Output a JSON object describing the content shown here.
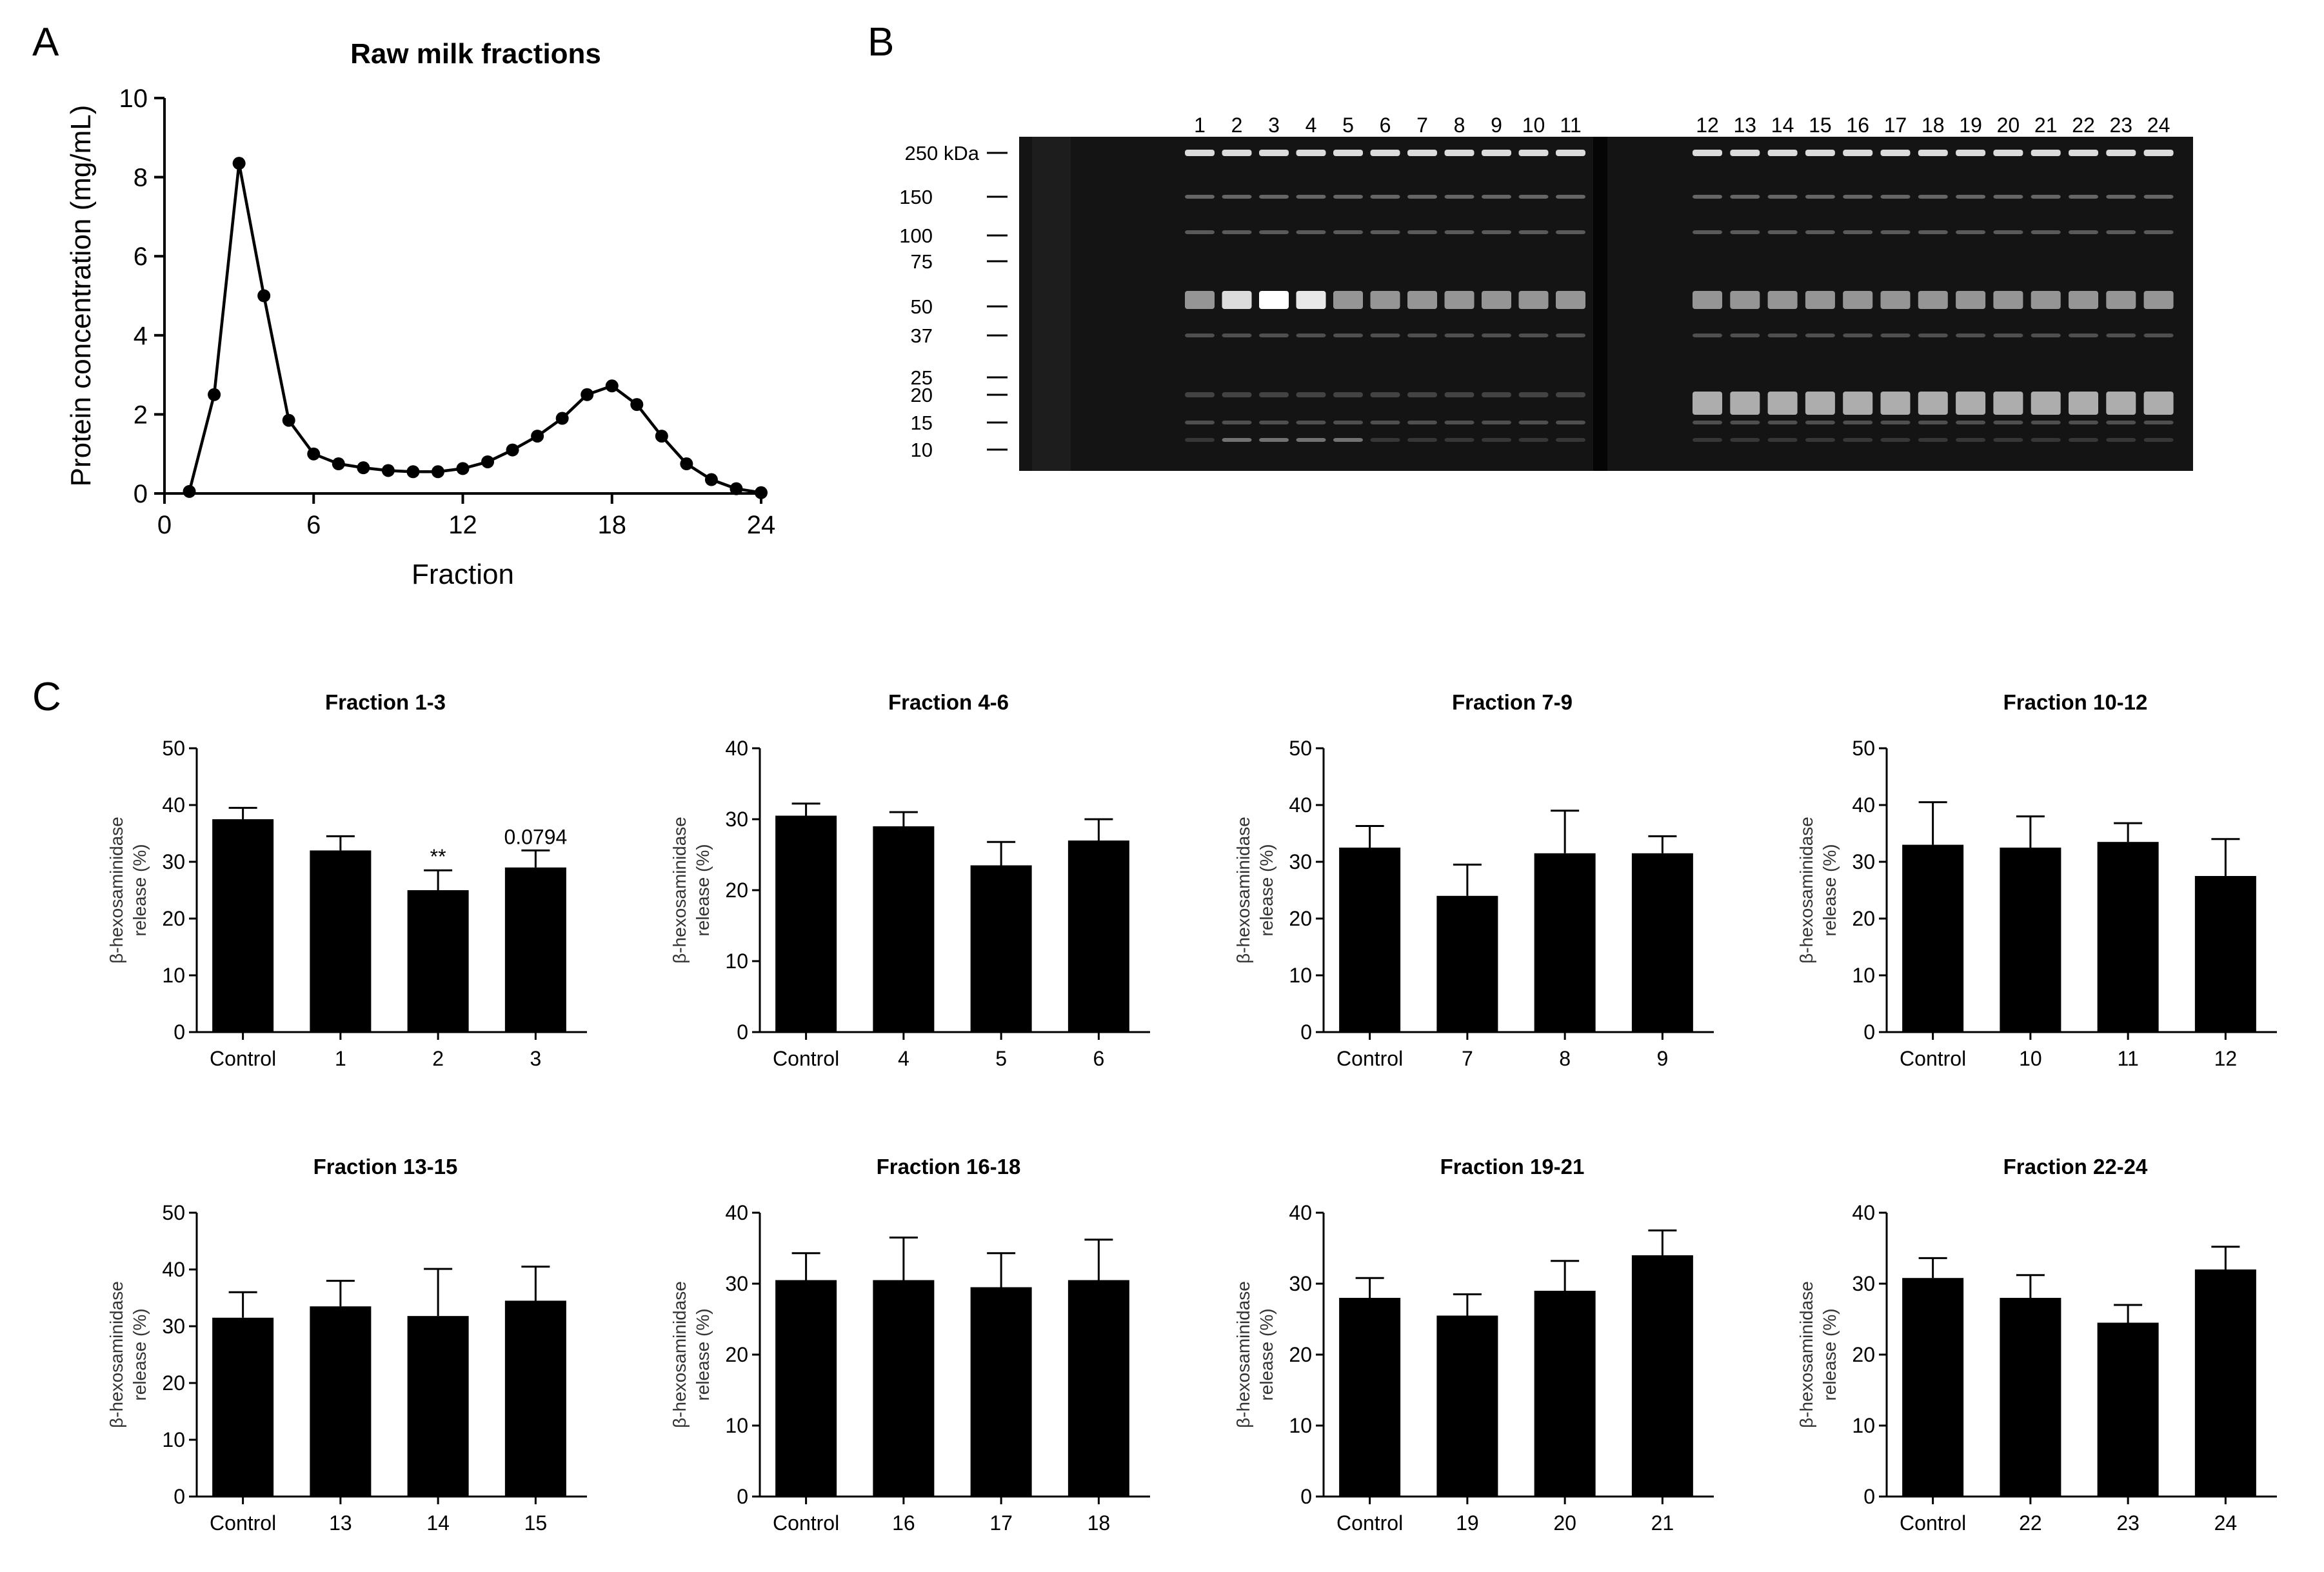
{
  "panels": {
    "a": "A",
    "b": "B",
    "c": "C"
  },
  "chart_data": [
    {
      "id": "A",
      "type": "line",
      "title": "Raw milk fractions",
      "xlabel": "Fraction",
      "ylabel": "Protein concentration (mg/mL)",
      "xlim": [
        0,
        24
      ],
      "ylim": [
        0,
        10
      ],
      "xticks": [
        0,
        6,
        12,
        18,
        24
      ],
      "yticks": [
        0,
        2,
        4,
        6,
        8,
        10
      ],
      "x": [
        1,
        2,
        3,
        4,
        5,
        6,
        7,
        8,
        9,
        10,
        11,
        12,
        13,
        14,
        15,
        16,
        17,
        18,
        19,
        20,
        21,
        22,
        23,
        24
      ],
      "y": [
        0.05,
        2.5,
        8.35,
        5.0,
        1.85,
        1.0,
        0.75,
        0.65,
        0.58,
        0.55,
        0.55,
        0.63,
        0.8,
        1.1,
        1.45,
        1.9,
        2.5,
        2.72,
        2.25,
        1.45,
        0.75,
        0.35,
        0.12,
        0.02
      ]
    },
    {
      "id": "B",
      "type": "gel",
      "lanes_left": [
        "1",
        "2",
        "3",
        "4",
        "5",
        "6",
        "7",
        "8",
        "9",
        "10",
        "11"
      ],
      "lanes_right": [
        "12",
        "13",
        "14",
        "15",
        "16",
        "17",
        "18",
        "19",
        "20",
        "21",
        "22",
        "23",
        "24"
      ],
      "markers": [
        "250 kDa",
        "150",
        "100",
        "75",
        "50",
        "37",
        "25",
        "20",
        "15",
        "10"
      ],
      "marker_values": [
        250,
        150,
        100,
        75,
        50,
        37,
        25,
        20,
        15,
        10
      ]
    },
    {
      "id": "C1",
      "type": "bar",
      "title": "Fraction 1-3",
      "ylabel": "β-hexosaminidase release (%)",
      "ylim": [
        0,
        50
      ],
      "yticks": [
        0,
        10,
        20,
        30,
        40,
        50
      ],
      "categories": [
        "Control",
        "1",
        "2",
        "3"
      ],
      "values": [
        37.5,
        32.0,
        25.0,
        29.0
      ],
      "errors": [
        2.0,
        2.5,
        3.5,
        3.0
      ],
      "annotations": [
        "",
        "",
        "**",
        "0.0794"
      ]
    },
    {
      "id": "C2",
      "type": "bar",
      "title": "Fraction 4-6",
      "ylabel": "β-hexosaminidase release (%)",
      "ylim": [
        0,
        40
      ],
      "yticks": [
        0,
        10,
        20,
        30,
        40
      ],
      "categories": [
        "Control",
        "4",
        "5",
        "6"
      ],
      "values": [
        30.5,
        29.0,
        23.5,
        27.0
      ],
      "errors": [
        1.7,
        2.0,
        3.3,
        3.0
      ],
      "annotations": [
        "",
        "",
        "",
        ""
      ]
    },
    {
      "id": "C3",
      "type": "bar",
      "title": "Fraction 7-9",
      "ylabel": "β-hexosaminidase release (%)",
      "ylim": [
        0,
        50
      ],
      "yticks": [
        0,
        10,
        20,
        30,
        40,
        50
      ],
      "categories": [
        "Control",
        "7",
        "8",
        "9"
      ],
      "values": [
        32.5,
        24.0,
        31.5,
        31.5
      ],
      "errors": [
        3.8,
        5.5,
        7.5,
        3.0
      ],
      "annotations": [
        "",
        "",
        "",
        ""
      ]
    },
    {
      "id": "C4",
      "type": "bar",
      "title": "Fraction 10-12",
      "ylabel": "β-hexosaminidase release (%)",
      "ylim": [
        0,
        50
      ],
      "yticks": [
        0,
        10,
        20,
        30,
        40,
        50
      ],
      "categories": [
        "Control",
        "10",
        "11",
        "12"
      ],
      "values": [
        33.0,
        32.5,
        33.5,
        27.5
      ],
      "errors": [
        7.5,
        5.5,
        3.3,
        6.5
      ],
      "annotations": [
        "",
        "",
        "",
        ""
      ]
    },
    {
      "id": "C5",
      "type": "bar",
      "title": "Fraction 13-15",
      "ylabel": "β-hexosaminidase release (%)",
      "ylim": [
        0,
        50
      ],
      "yticks": [
        0,
        10,
        20,
        30,
        40,
        50
      ],
      "categories": [
        "Control",
        "13",
        "14",
        "15"
      ],
      "values": [
        31.5,
        33.5,
        31.8,
        34.5
      ],
      "errors": [
        4.5,
        4.5,
        8.3,
        6.0
      ],
      "annotations": [
        "",
        "",
        "",
        ""
      ]
    },
    {
      "id": "C6",
      "type": "bar",
      "title": "Fraction 16-18",
      "ylabel": "β-hexosaminidase release (%)",
      "ylim": [
        0,
        40
      ],
      "yticks": [
        0,
        10,
        20,
        30,
        40
      ],
      "categories": [
        "Control",
        "16",
        "17",
        "18"
      ],
      "values": [
        30.5,
        30.5,
        29.5,
        30.5
      ],
      "errors": [
        3.8,
        6.0,
        4.8,
        5.7
      ],
      "annotations": [
        "",
        "",
        "",
        ""
      ]
    },
    {
      "id": "C7",
      "type": "bar",
      "title": "Fraction 19-21",
      "ylabel": "β-hexosaminidase release (%)",
      "ylim": [
        0,
        40
      ],
      "yticks": [
        0,
        10,
        20,
        30,
        40
      ],
      "categories": [
        "Control",
        "19",
        "20",
        "21"
      ],
      "values": [
        28.0,
        25.5,
        29.0,
        34.0
      ],
      "errors": [
        2.8,
        3.0,
        4.2,
        3.5
      ],
      "annotations": [
        "",
        "",
        "",
        ""
      ]
    },
    {
      "id": "C8",
      "type": "bar",
      "title": "Fraction 22-24",
      "ylabel": "β-hexosaminidase release (%)",
      "ylim": [
        0,
        40
      ],
      "yticks": [
        0,
        10,
        20,
        30,
        40
      ],
      "categories": [
        "Control",
        "22",
        "23",
        "24"
      ],
      "values": [
        30.8,
        28.0,
        24.5,
        32.0
      ],
      "errors": [
        2.8,
        3.2,
        2.5,
        3.2
      ],
      "annotations": [
        "",
        "",
        "",
        ""
      ]
    }
  ],
  "bar_ylabel_lines": [
    "β-hexosaminidase",
    "release (%)"
  ]
}
